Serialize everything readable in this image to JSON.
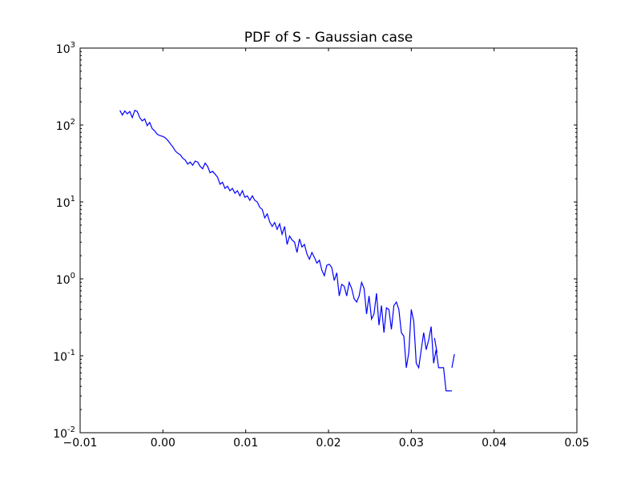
{
  "chart_data": {
    "type": "line",
    "title": "PDF of S - Gaussian case",
    "xlabel": "",
    "ylabel": "",
    "xlim": [
      -0.01,
      0.05
    ],
    "ylim": [
      0.01,
      1000
    ],
    "yscale": "log",
    "grid": false,
    "legend": "none",
    "x_ticks": [
      {
        "value": -0.01,
        "label": "−0.01"
      },
      {
        "value": 0.0,
        "label": "0.00"
      },
      {
        "value": 0.01,
        "label": "0.01"
      },
      {
        "value": 0.02,
        "label": "0.02"
      },
      {
        "value": 0.03,
        "label": "0.03"
      },
      {
        "value": 0.04,
        "label": "0.04"
      },
      {
        "value": 0.05,
        "label": "0.05"
      }
    ],
    "y_ticks": [
      {
        "value": 0.01,
        "base": "10",
        "exp": "-2"
      },
      {
        "value": 0.1,
        "base": "10",
        "exp": "-1"
      },
      {
        "value": 1,
        "base": "10",
        "exp": "0"
      },
      {
        "value": 10,
        "base": "10",
        "exp": "1"
      },
      {
        "value": 100,
        "base": "10",
        "exp": "2"
      },
      {
        "value": 1000,
        "base": "10",
        "exp": "3"
      }
    ],
    "series": [
      {
        "color": "#0000ff",
        "segments": [
          [
            [
              -0.0052,
              155
            ],
            [
              -0.0049,
              135
            ],
            [
              -0.0046,
              152
            ],
            [
              -0.0043,
              140
            ],
            [
              -0.004,
              150
            ],
            [
              -0.0037,
              125
            ],
            [
              -0.0034,
              155
            ],
            [
              -0.0031,
              150
            ],
            [
              -0.0028,
              125
            ],
            [
              -0.0025,
              113
            ],
            [
              -0.0022,
              120
            ],
            [
              -0.0019,
              98
            ],
            [
              -0.0016,
              108
            ],
            [
              -0.0013,
              90
            ],
            [
              -0.001,
              84
            ],
            [
              -0.0007,
              76
            ],
            [
              -0.0004,
              73
            ],
            [
              0.0,
              71
            ],
            [
              0.0003,
              68
            ],
            [
              0.0006,
              63
            ],
            [
              0.0009,
              57
            ],
            [
              0.0012,
              52
            ],
            [
              0.0015,
              46
            ],
            [
              0.0018,
              43
            ],
            [
              0.0021,
              41
            ],
            [
              0.0024,
              37
            ],
            [
              0.0027,
              35
            ],
            [
              0.003,
              31
            ],
            [
              0.0033,
              33
            ],
            [
              0.0036,
              30
            ],
            [
              0.0039,
              34
            ],
            [
              0.0042,
              33
            ],
            [
              0.0045,
              29
            ],
            [
              0.0048,
              27
            ],
            [
              0.0051,
              32
            ],
            [
              0.0054,
              29
            ],
            [
              0.0057,
              24
            ],
            [
              0.006,
              25
            ],
            [
              0.0063,
              23
            ],
            [
              0.0066,
              21
            ],
            [
              0.0069,
              17
            ],
            [
              0.0072,
              18
            ],
            [
              0.0075,
              15
            ],
            [
              0.0078,
              16
            ],
            [
              0.0081,
              14
            ],
            [
              0.0084,
              15
            ],
            [
              0.0087,
              13
            ],
            [
              0.009,
              14
            ],
            [
              0.0093,
              12
            ],
            [
              0.0096,
              14
            ],
            [
              0.0099,
              11.5
            ],
            [
              0.0102,
              12
            ],
            [
              0.0105,
              10.5
            ],
            [
              0.0108,
              12
            ],
            [
              0.0111,
              10.5
            ],
            [
              0.0114,
              10
            ],
            [
              0.0117,
              8.5
            ],
            [
              0.012,
              8
            ],
            [
              0.0123,
              6.2
            ],
            [
              0.0126,
              7
            ],
            [
              0.0129,
              5.5
            ],
            [
              0.0132,
              4.8
            ],
            [
              0.0135,
              5.4
            ],
            [
              0.0138,
              4.4
            ],
            [
              0.0141,
              5.2
            ],
            [
              0.0144,
              3.8
            ],
            [
              0.0147,
              4.8
            ],
            [
              0.015,
              2.8
            ],
            [
              0.0153,
              3.6
            ],
            [
              0.0156,
              3.2
            ],
            [
              0.0159,
              3.0
            ],
            [
              0.0162,
              2.2
            ],
            [
              0.0165,
              3.3
            ],
            [
              0.0168,
              2.6
            ],
            [
              0.0171,
              2.8
            ],
            [
              0.0174,
              2.1
            ],
            [
              0.0177,
              1.8
            ],
            [
              0.018,
              2.2
            ],
            [
              0.0183,
              1.9
            ],
            [
              0.0186,
              1.6
            ],
            [
              0.0189,
              1.75
            ],
            [
              0.0192,
              1.3
            ],
            [
              0.0195,
              1.1
            ],
            [
              0.0198,
              1.5
            ],
            [
              0.0201,
              1.55
            ],
            [
              0.0204,
              1.4
            ],
            [
              0.0207,
              0.95
            ],
            [
              0.021,
              1.2
            ],
            [
              0.0213,
              0.6
            ],
            [
              0.0216,
              0.85
            ],
            [
              0.0219,
              0.8
            ],
            [
              0.0222,
              0.6
            ],
            [
              0.0225,
              0.9
            ],
            [
              0.0228,
              0.75
            ],
            [
              0.0231,
              0.55
            ],
            [
              0.0234,
              0.5
            ],
            [
              0.0237,
              0.6
            ],
            [
              0.024,
              0.9
            ],
            [
              0.0243,
              0.75
            ],
            [
              0.0246,
              0.35
            ],
            [
              0.0249,
              0.6
            ],
            [
              0.0252,
              0.3
            ],
            [
              0.0255,
              0.35
            ],
            [
              0.0258,
              0.65
            ],
            [
              0.0261,
              0.25
            ],
            [
              0.0264,
              0.45
            ],
            [
              0.0267,
              0.2
            ],
            [
              0.027,
              0.42
            ],
            [
              0.0273,
              0.4
            ],
            [
              0.0276,
              0.22
            ],
            [
              0.0279,
              0.45
            ],
            [
              0.0282,
              0.5
            ],
            [
              0.0285,
              0.4
            ],
            [
              0.0288,
              0.2
            ],
            [
              0.0291,
              0.18
            ],
            [
              0.0294,
              0.07
            ],
            [
              0.0297,
              0.11
            ],
            [
              0.03,
              0.4
            ],
            [
              0.0303,
              0.28
            ],
            [
              0.0306,
              0.08
            ],
            [
              0.0309,
              0.07
            ],
            [
              0.0312,
              0.12
            ],
            [
              0.0315,
              0.2
            ],
            [
              0.0318,
              0.12
            ],
            [
              0.0321,
              0.16
            ],
            [
              0.0324,
              0.24
            ],
            [
              0.0327,
              0.08
            ],
            [
              0.033,
              0.12
            ],
            [
              0.0333,
              0.07
            ],
            [
              0.0336,
              0.07
            ],
            [
              0.0339,
              0.07
            ],
            [
              0.0342,
              0.035
            ],
            [
              0.0345,
              0.035
            ]
          ],
          [
            [
              0.0328,
              0.17
            ],
            [
              0.0331,
              0.11
            ]
          ],
          [
            [
              0.0344,
              0.035
            ],
            [
              0.0349,
              0.035
            ]
          ],
          [
            [
              0.0349,
              0.07
            ],
            [
              0.0352,
              0.105
            ]
          ]
        ]
      }
    ]
  }
}
